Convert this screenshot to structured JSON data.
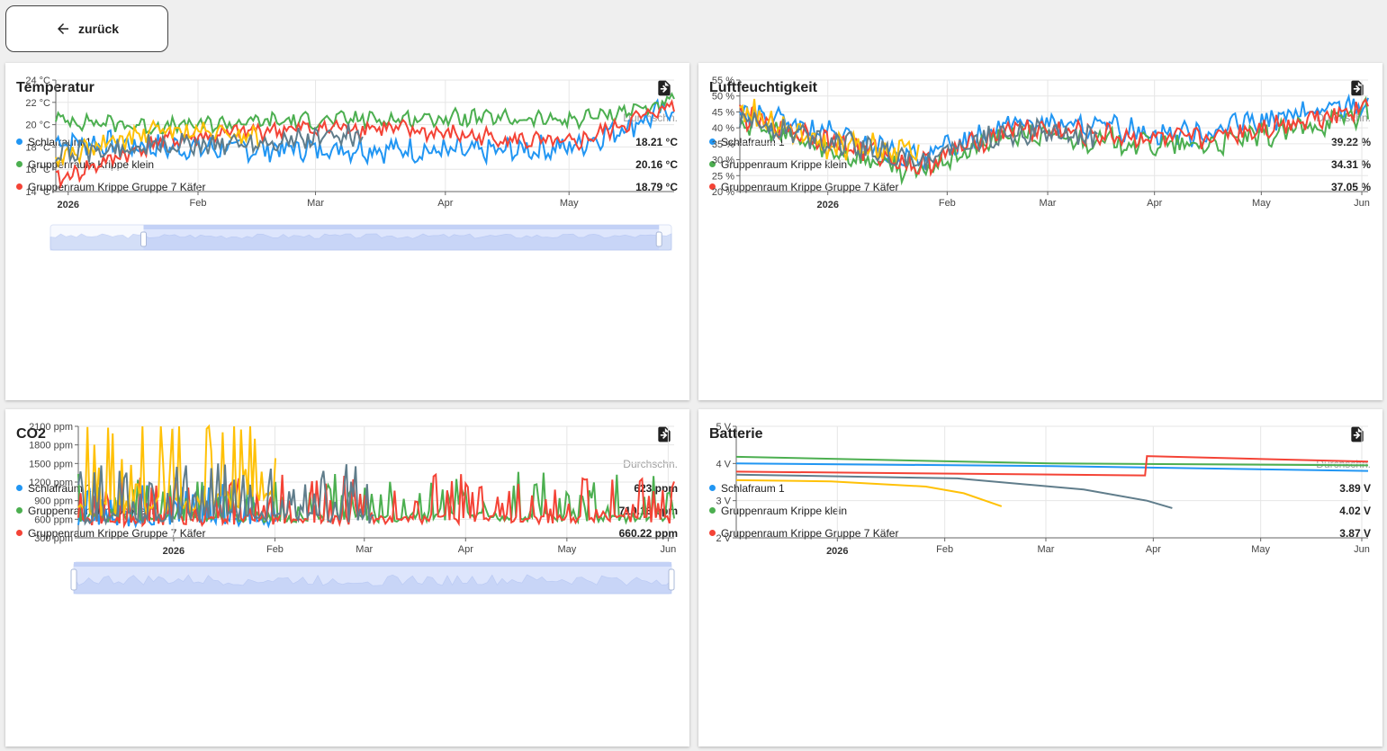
{
  "back_label": "zurück",
  "avg_label": "Durchschn.",
  "colors": {
    "blue": "#2196f3",
    "green": "#4caf50",
    "red": "#f44336",
    "yellow": "#ffc107",
    "grey": "#607d8b"
  },
  "cards": [
    {
      "title": "Temperatur",
      "legend": [
        {
          "name": "Schlafraum 1",
          "value": "18.21 °C",
          "color": "#2196f3"
        },
        {
          "name": "Gruppenraum Krippe klein",
          "value": "20.16 °C",
          "color": "#4caf50"
        },
        {
          "name": "Gruppenraum Krippe Gruppe 7 Käfer",
          "value": "18.79 °C",
          "color": "#f44336"
        }
      ],
      "chart_data": {
        "type": "line",
        "y_ticks": [
          "14 °C",
          "16 °C",
          "18 °C",
          "20 °C",
          "22 °C",
          "24 °C"
        ],
        "ylim": [
          14,
          24
        ],
        "x_ticks": [
          {
            "label": "2026",
            "bold": true
          },
          {
            "label": "Feb"
          },
          {
            "label": "Mar"
          },
          {
            "label": "Apr"
          },
          {
            "label": "May"
          }
        ],
        "series": [
          {
            "color": "#2196f3",
            "base": 18.2,
            "amp": 1.2,
            "trend": [
              18.5,
              18.0,
              17.8,
              17.9,
              17.5,
              18.0,
              21.5
            ]
          },
          {
            "color": "#4caf50",
            "base": 20.2,
            "amp": 0.8,
            "trend": [
              20.5,
              19.8,
              20.3,
              20.5,
              20.6,
              20.4,
              22.0
            ]
          },
          {
            "color": "#f44336",
            "base": 18.8,
            "amp": 0.9,
            "trend": [
              15.0,
              18.5,
              19.5,
              19.8,
              19.0,
              18.2,
              21.8
            ]
          },
          {
            "color": "#ffc107",
            "base": 19.0,
            "amp": 1.0,
            "trend": [
              17.0,
              19.5,
              19.0,
              null,
              null,
              null,
              null
            ]
          },
          {
            "color": "#607d8b",
            "base": 18.5,
            "amp": 1.1,
            "trend": [
              17.5,
              18.0,
              18.5,
              19.0,
              null,
              null,
              null
            ]
          }
        ]
      }
    },
    {
      "title": "Luftfeuchtigkeit",
      "legend": [
        {
          "name": "Schlafraum 1",
          "value": "39.22 %",
          "color": "#2196f3"
        },
        {
          "name": "Gruppenraum Krippe klein",
          "value": "34.31 %",
          "color": "#4caf50"
        },
        {
          "name": "Gruppenraum Krippe Gruppe 7 Käfer",
          "value": "37.05 %",
          "color": "#f44336"
        }
      ],
      "chart_data": {
        "type": "line",
        "y_ticks": [
          "20 %",
          "25 %",
          "30 %",
          "35 %",
          "40 %",
          "45 %",
          "50 %",
          "55 %"
        ],
        "ylim": [
          20,
          55
        ],
        "x_ticks": [
          {
            "label": "2026",
            "bold": true
          },
          {
            "label": "Feb"
          },
          {
            "label": "Mar"
          },
          {
            "label": "Apr"
          },
          {
            "label": "May"
          },
          {
            "label": "Jun"
          }
        ],
        "series": [
          {
            "color": "#2196f3",
            "base": 39,
            "amp": 4,
            "trend": [
              45,
              38,
              30,
              42,
              40,
              38,
              43,
              48
            ]
          },
          {
            "color": "#4caf50",
            "base": 34,
            "amp": 4,
            "trend": [
              42,
              33,
              26,
              38,
              36,
              34,
              38,
              45
            ]
          },
          {
            "color": "#f44336",
            "base": 37,
            "amp": 4,
            "trend": [
              44,
              36,
              28,
              40,
              38,
              36,
              41,
              47
            ]
          },
          {
            "color": "#ffc107",
            "base": 38,
            "amp": 5,
            "trend": [
              46,
              34,
              33,
              null,
              null,
              null,
              null,
              null
            ]
          },
          {
            "color": "#607d8b",
            "base": 36,
            "amp": 4,
            "trend": [
              43,
              36,
              30,
              39,
              37,
              null,
              null,
              null
            ]
          }
        ]
      }
    },
    {
      "title": "CO2",
      "legend": [
        {
          "name": "Schlafraum 1",
          "value": "623 ppm",
          "color": "#2196f3"
        },
        {
          "name": "Gruppenraum Krippe klein",
          "value": "710.13 ppm",
          "color": "#4caf50"
        },
        {
          "name": "Gruppenraum Krippe Gruppe 7 Käfer",
          "value": "660.22 ppm",
          "color": "#f44336"
        }
      ],
      "chart_data": {
        "type": "line",
        "y_ticks": [
          "300 ppm",
          "600 ppm",
          "900 ppm",
          "1200 ppm",
          "1500 ppm",
          "1800 ppm",
          "2100 ppm"
        ],
        "ylim": [
          300,
          2100
        ],
        "x_ticks": [
          {
            "label": "2026",
            "bold": true
          },
          {
            "label": "Feb"
          },
          {
            "label": "Mar"
          },
          {
            "label": "Apr"
          },
          {
            "label": "May"
          },
          {
            "label": "Jun"
          }
        ],
        "series": [
          {
            "color": "#2196f3",
            "base": 620,
            "amp": 250,
            "trend": [
              600,
              620,
              620,
              null,
              null,
              null,
              null
            ]
          },
          {
            "color": "#4caf50",
            "base": 710,
            "amp": 300,
            "trend": [
              700,
              720,
              700,
              700,
              720,
              700,
              700
            ]
          },
          {
            "color": "#f44336",
            "base": 660,
            "amp": 300,
            "trend": [
              650,
              650,
              660,
              660,
              680,
              680,
              660
            ]
          },
          {
            "color": "#ffc107",
            "base": 900,
            "amp": 600,
            "trend": [
              900,
              1000,
              1100,
              null,
              null,
              null,
              null
            ]
          },
          {
            "color": "#607d8b",
            "base": 700,
            "amp": 350,
            "trend": [
              700,
              720,
              760,
              700,
              null,
              null,
              null
            ]
          }
        ]
      }
    },
    {
      "title": "Batterie",
      "legend": [
        {
          "name": "Schlafraum 1",
          "value": "3.89 V",
          "color": "#2196f3"
        },
        {
          "name": "Gruppenraum Krippe klein",
          "value": "4.02 V",
          "color": "#4caf50"
        },
        {
          "name": "Gruppenraum Krippe Gruppe 7 Käfer",
          "value": "3.87 V",
          "color": "#f44336"
        }
      ],
      "chart_data": {
        "type": "line",
        "y_ticks": [
          "2 V",
          "3 V",
          "4 V",
          "5 V"
        ],
        "ylim": [
          2,
          5
        ],
        "x_ticks": [
          {
            "label": "2026",
            "bold": true
          },
          {
            "label": "Feb"
          },
          {
            "label": "Mar"
          },
          {
            "label": "Apr"
          },
          {
            "label": "May"
          },
          {
            "label": "Jun"
          }
        ],
        "series": [
          {
            "color": "#4caf50",
            "points": [
              [
                0,
                4.18
              ],
              [
                0.5,
                4.0
              ],
              [
                1,
                3.95
              ]
            ]
          },
          {
            "color": "#2196f3",
            "points": [
              [
                0,
                4.0
              ],
              [
                0.5,
                3.93
              ],
              [
                1,
                3.8
              ]
            ]
          },
          {
            "color": "#f44336",
            "points": [
              [
                0,
                3.78
              ],
              [
                0.647,
                3.68
              ],
              [
                0.65,
                4.2
              ],
              [
                1,
                4.05
              ]
            ]
          },
          {
            "color": "#ffc107",
            "points": [
              [
                0,
                3.55
              ],
              [
                0.15,
                3.52
              ],
              [
                0.3,
                3.38
              ],
              [
                0.36,
                3.2
              ],
              [
                0.42,
                2.85
              ]
            ]
          },
          {
            "color": "#607d8b",
            "points": [
              [
                0,
                3.7
              ],
              [
                0.35,
                3.6
              ],
              [
                0.55,
                3.3
              ],
              [
                0.65,
                3.0
              ],
              [
                0.69,
                2.8
              ]
            ]
          }
        ]
      }
    }
  ]
}
